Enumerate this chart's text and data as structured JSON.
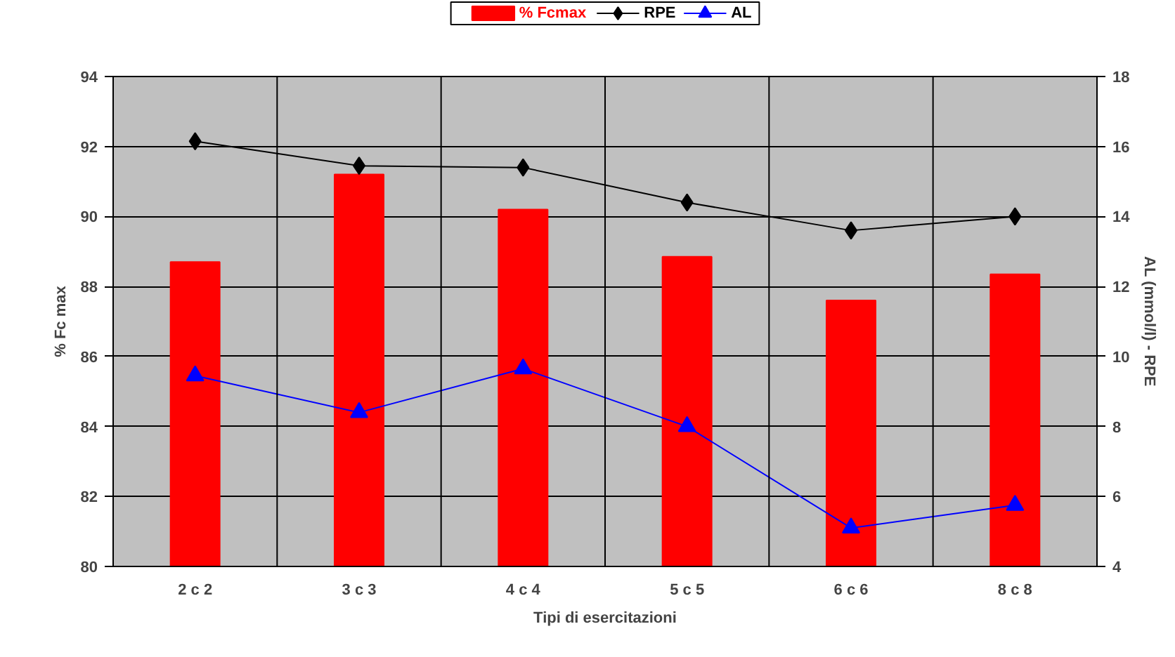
{
  "chart_data": {
    "type": "bar",
    "xlabel": "Tipi di esercitazioni",
    "ylabel": "% Fc max",
    "y2label": "AL (mmol/l) - RPE",
    "categories": [
      "2 c 2",
      "3 c 3",
      "4 c 4",
      "5 c 5",
      "6 c 6",
      "8 c 8"
    ],
    "series": [
      {
        "name": "% Fcmax",
        "color": "#ff0000",
        "values": [
          88.7,
          91.2,
          90.2,
          88.85,
          87.6,
          88.35
        ]
      },
      {
        "name": "RPE",
        "color": "#000000",
        "type": "line",
        "axis": "y2",
        "marker": "diamond",
        "values": [
          16.15,
          15.45,
          15.4,
          14.4,
          13.6,
          14.0
        ]
      },
      {
        "name": "AL",
        "color": "#0000ff",
        "type": "line",
        "axis": "y2",
        "marker": "triangle",
        "values": [
          9.45,
          8.4,
          9.65,
          8.0,
          5.1,
          5.75
        ]
      }
    ],
    "ylim": [
      80,
      94
    ],
    "yticks": [
      80,
      82,
      84,
      86,
      88,
      90,
      92,
      94
    ],
    "y2lim": [
      4,
      18
    ],
    "y2ticks": [
      4,
      6,
      8,
      10,
      12,
      14,
      16,
      18
    ],
    "grid": true,
    "legend": "top"
  }
}
